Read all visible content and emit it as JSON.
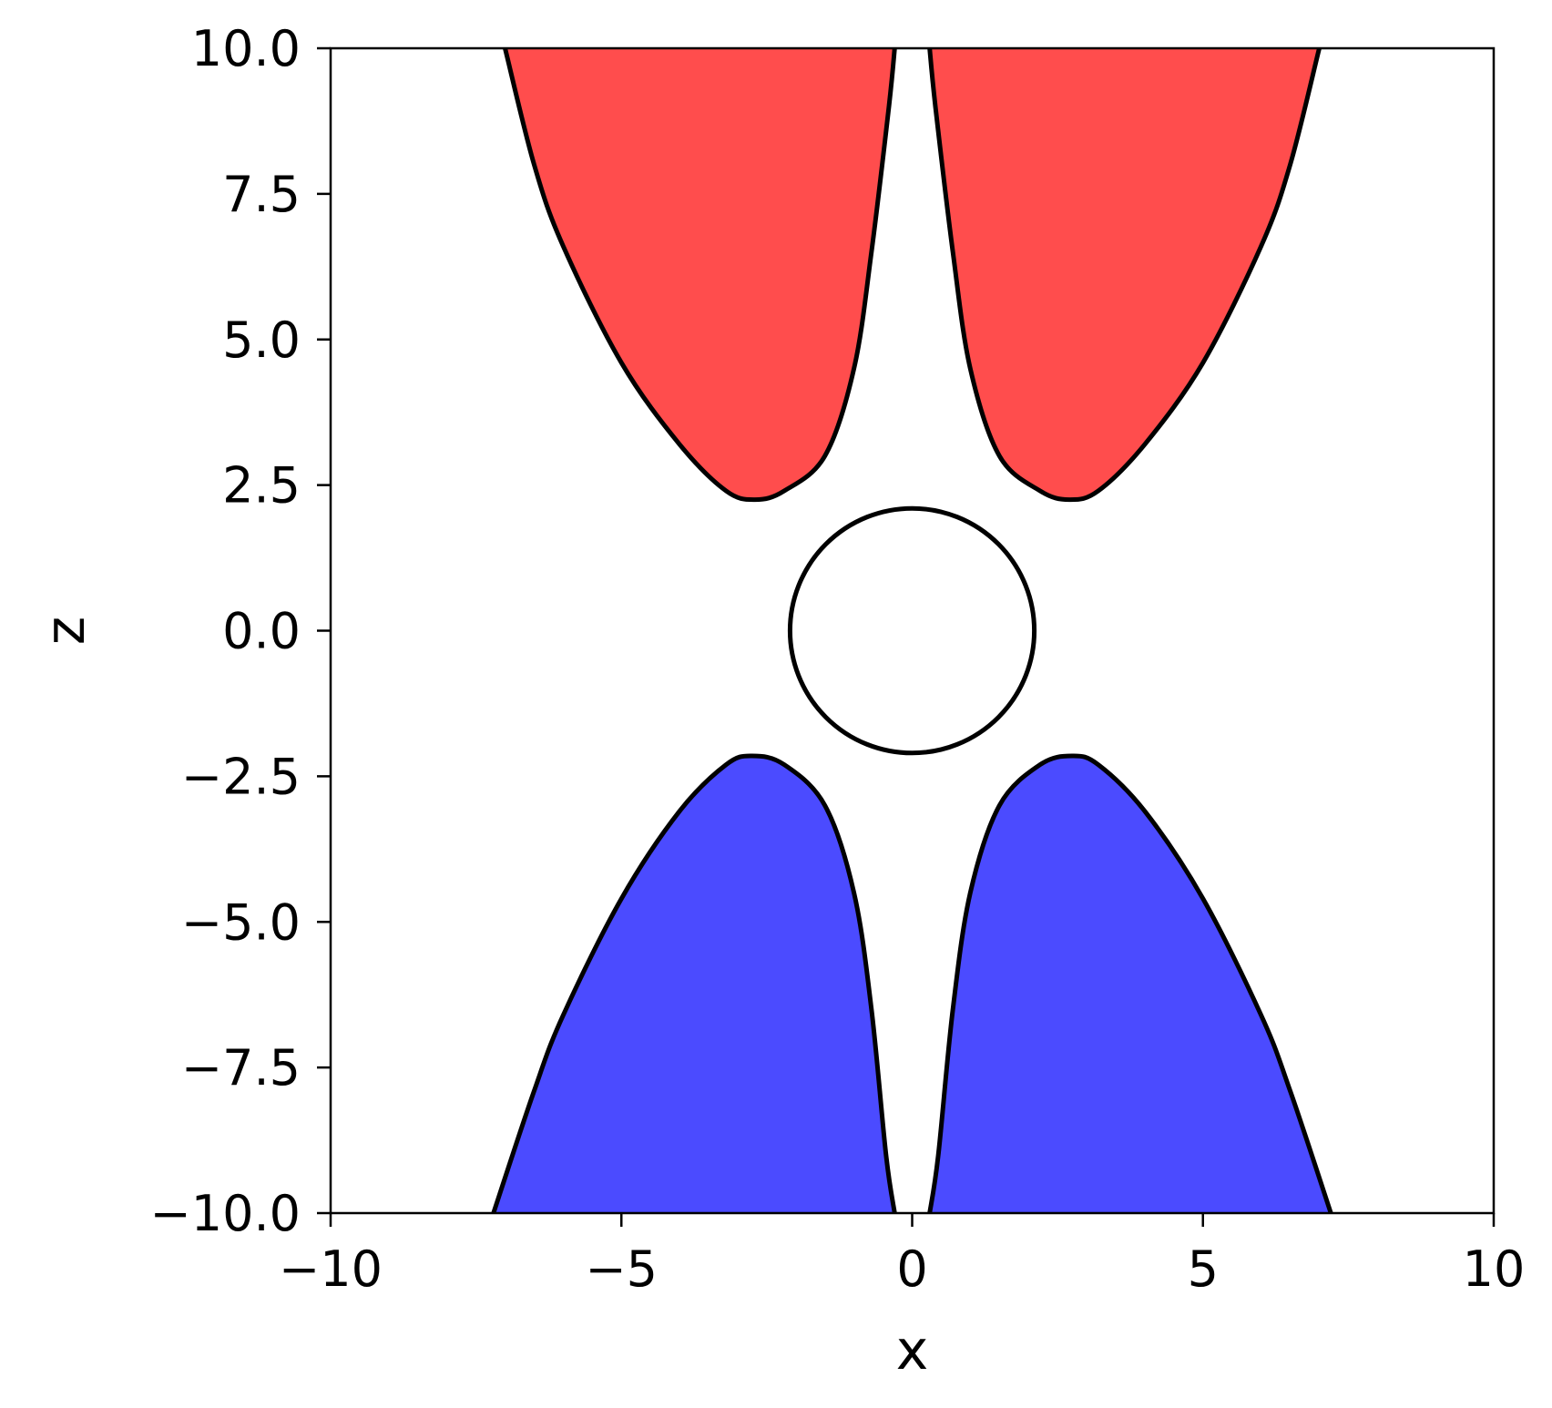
{
  "chart_data": {
    "type": "area",
    "title": "",
    "xlabel": "x",
    "ylabel": "z",
    "xlim": [
      -10,
      10
    ],
    "ylim": [
      -10,
      10
    ],
    "grid": false,
    "x_ticks": [
      -10,
      -5,
      0,
      5,
      10
    ],
    "x_tick_labels": [
      "−10",
      "−5",
      "0",
      "5",
      "10"
    ],
    "y_ticks": [
      -10,
      -7.5,
      -5,
      -2.5,
      0,
      2.5,
      5,
      7.5,
      10
    ],
    "y_tick_labels": [
      "−10.0",
      "−7.5",
      "−5.0",
      "−2.5",
      "0.0",
      "2.5",
      "5.0",
      "7.5",
      "10.0"
    ],
    "regions": [
      {
        "id": "upper-left-lobe",
        "color": "#ff4d4d",
        "boundary": [
          [
            -7.0,
            10
          ],
          [
            -6.5,
            8.0
          ],
          [
            -6.0,
            6.6
          ],
          [
            -5.0,
            4.6
          ],
          [
            -4.0,
            3.2
          ],
          [
            -3.2,
            2.4
          ],
          [
            -2.7,
            2.25
          ],
          [
            -2.2,
            2.4
          ],
          [
            -1.5,
            3.0
          ],
          [
            -1.0,
            4.5
          ],
          [
            -0.7,
            6.5
          ],
          [
            -0.4,
            9.0
          ],
          [
            -0.3,
            10
          ]
        ]
      },
      {
        "id": "upper-right-lobe",
        "color": "#ff4d4d",
        "boundary": [
          [
            0.3,
            10
          ],
          [
            0.4,
            9.0
          ],
          [
            0.7,
            6.5
          ],
          [
            1.0,
            4.5
          ],
          [
            1.5,
            3.0
          ],
          [
            2.2,
            2.4
          ],
          [
            2.7,
            2.25
          ],
          [
            3.2,
            2.4
          ],
          [
            4.0,
            3.2
          ],
          [
            5.0,
            4.6
          ],
          [
            6.0,
            6.6
          ],
          [
            6.5,
            8.0
          ],
          [
            7.0,
            10
          ]
        ]
      },
      {
        "id": "lower-left-lobe",
        "color": "#4b4bff",
        "boundary": [
          [
            -7.2,
            -10
          ],
          [
            -6.5,
            -7.9
          ],
          [
            -6.0,
            -6.6
          ],
          [
            -5.0,
            -4.6
          ],
          [
            -4.0,
            -3.1
          ],
          [
            -3.2,
            -2.3
          ],
          [
            -2.75,
            -2.15
          ],
          [
            -2.2,
            -2.3
          ],
          [
            -1.5,
            -3.0
          ],
          [
            -1.0,
            -4.5
          ],
          [
            -0.7,
            -6.5
          ],
          [
            -0.45,
            -9.0
          ],
          [
            -0.3,
            -10
          ]
        ]
      },
      {
        "id": "lower-right-lobe",
        "color": "#4b4bff",
        "boundary": [
          [
            0.3,
            -10
          ],
          [
            0.45,
            -9.0
          ],
          [
            0.7,
            -6.5
          ],
          [
            1.0,
            -4.5
          ],
          [
            1.5,
            -3.0
          ],
          [
            2.2,
            -2.3
          ],
          [
            2.75,
            -2.15
          ],
          [
            3.2,
            -2.3
          ],
          [
            4.0,
            -3.1
          ],
          [
            5.0,
            -4.6
          ],
          [
            6.0,
            -6.6
          ],
          [
            6.5,
            -7.9
          ],
          [
            7.2,
            -10
          ]
        ]
      }
    ],
    "circle": {
      "cx": 0,
      "cz": 0,
      "r": 2.1
    }
  }
}
